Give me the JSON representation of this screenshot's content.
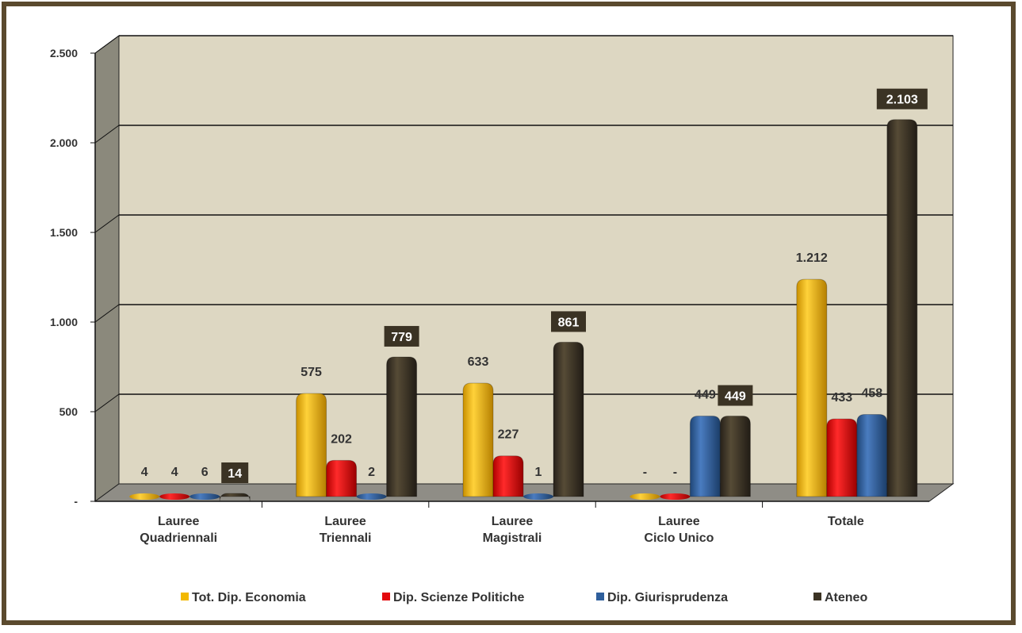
{
  "chart_data": {
    "type": "bar",
    "title": "",
    "xlabel": "",
    "ylabel": "",
    "ylim": [
      0,
      2500
    ],
    "yticks": [
      {
        "value": 0,
        "label": "-"
      },
      {
        "value": 500,
        "label": "500"
      },
      {
        "value": 1000,
        "label": "1.000"
      },
      {
        "value": 1500,
        "label": "1.500"
      },
      {
        "value": 2000,
        "label": "2.000"
      },
      {
        "value": 2500,
        "label": "2.500"
      }
    ],
    "categories": [
      [
        "Lauree",
        "Quadriennali"
      ],
      [
        "Lauree",
        "Triennali"
      ],
      [
        "Lauree",
        "Magistrali"
      ],
      [
        "Lauree",
        "Ciclo Unico"
      ],
      [
        "Totale"
      ]
    ],
    "grid": true,
    "legend_position": "bottom",
    "series": [
      {
        "name": "Tot. Dip. Economia",
        "color": "#f2b800",
        "values": [
          4,
          575,
          633,
          0,
          1212
        ],
        "labels": [
          "4",
          "575",
          "633",
          "-",
          "1.212"
        ]
      },
      {
        "name": "Dip. Scienze Politiche",
        "color": "#e3090d",
        "values": [
          4,
          202,
          227,
          0,
          433
        ],
        "labels": [
          "4",
          "202",
          "227",
          "-",
          "433"
        ]
      },
      {
        "name": "Dip. Giurisprudenza",
        "color": "#2f5f9c",
        "values": [
          6,
          2,
          1,
          449,
          458
        ],
        "labels": [
          "6",
          "2",
          "1",
          "449",
          "458"
        ]
      },
      {
        "name": "Ateneo",
        "color": "#3b3324",
        "values": [
          14,
          779,
          861,
          449,
          2103
        ],
        "labels": [
          "14",
          "779",
          "861",
          "449",
          "2.103"
        ]
      }
    ]
  }
}
